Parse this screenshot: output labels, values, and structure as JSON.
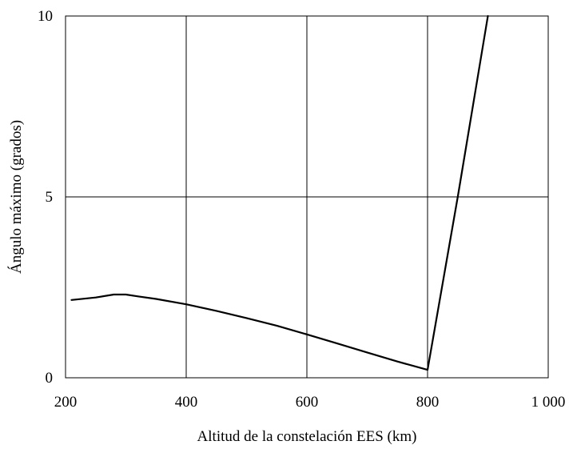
{
  "chart_data": {
    "type": "line",
    "title": "",
    "xlabel": "Altitud de la constelación EES (km)",
    "ylabel": "Ángulo máximo (grados)",
    "xlim": [
      200,
      1000
    ],
    "ylim": [
      0,
      10
    ],
    "x_ticks": [
      200,
      400,
      600,
      800,
      1000
    ],
    "x_tick_labels": [
      "200",
      "400",
      "600",
      "800",
      "1 000"
    ],
    "y_ticks": [
      0,
      5,
      10
    ],
    "y_tick_labels": [
      "0",
      "5",
      "10"
    ],
    "grid": true,
    "series": [
      {
        "color": "#000000",
        "x": [
          210,
          250,
          280,
          300,
          320,
          350,
          400,
          450,
          500,
          550,
          600,
          650,
          700,
          750,
          800,
          850,
          900
        ],
        "y": [
          2.15,
          2.22,
          2.3,
          2.3,
          2.25,
          2.18,
          2.03,
          1.85,
          1.65,
          1.44,
          1.2,
          0.95,
          0.7,
          0.45,
          0.22,
          5.0,
          10.0
        ]
      }
    ]
  }
}
